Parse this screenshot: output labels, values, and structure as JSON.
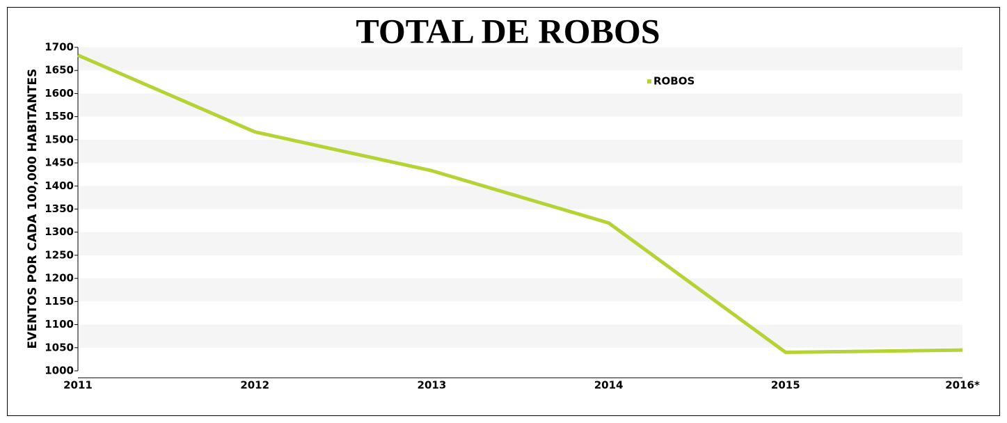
{
  "chart_data": {
    "type": "line",
    "title": "TOTAL DE ROBOS",
    "y_label": "EVENTOS POR CADA 100,000 HABITANTES",
    "categories": [
      "2011",
      "2012",
      "2013",
      "2014",
      "2015",
      "2016*"
    ],
    "series": [
      {
        "name": "ROBOS",
        "color": "#b5d334",
        "values": [
          1683,
          1517,
          1433,
          1320,
          1040,
          1045
        ]
      }
    ],
    "ylim": [
      1000,
      1700
    ],
    "yticks": [
      1000,
      1050,
      1100,
      1150,
      1200,
      1250,
      1300,
      1350,
      1400,
      1450,
      1500,
      1550,
      1600,
      1650,
      1700
    ],
    "grid": true,
    "legend": "top-right"
  }
}
